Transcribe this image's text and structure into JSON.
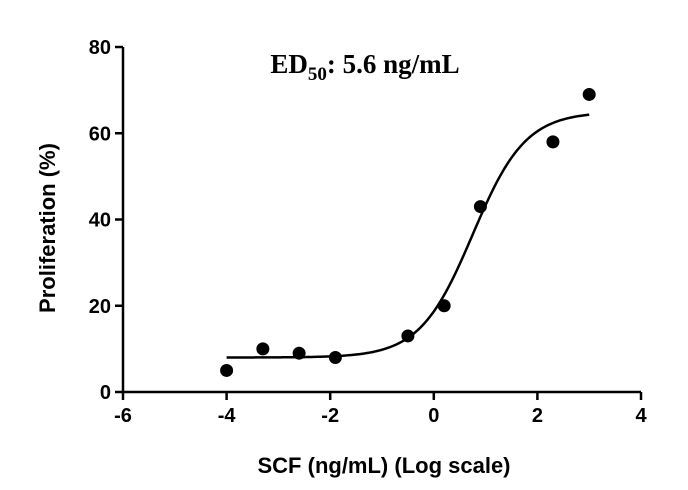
{
  "chart_data": {
    "type": "scatter",
    "title_prefix": "ED",
    "title_subscript": "50",
    "title_suffix": ": 5.6 ng/mL",
    "xlabel": "SCF (ng/mL) (Log scale)",
    "ylabel": "Proliferation (%)",
    "xlim": [
      -6,
      4
    ],
    "ylim": [
      0,
      80
    ],
    "xticks": [
      -6,
      -4,
      -2,
      0,
      2,
      4
    ],
    "yticks": [
      0,
      20,
      40,
      60,
      80
    ],
    "grid": false,
    "series": [
      {
        "points": [
          {
            "x": -4.0,
            "y": 5
          },
          {
            "x": -3.3,
            "y": 10
          },
          {
            "x": -2.6,
            "y": 9
          },
          {
            "x": -1.9,
            "y": 8
          },
          {
            "x": -0.5,
            "y": 13
          },
          {
            "x": 0.2,
            "y": 20
          },
          {
            "x": 0.9,
            "y": 43
          },
          {
            "x": 2.3,
            "y": 58
          },
          {
            "x": 3.0,
            "y": 69
          }
        ],
        "fit": {
          "model": "sigmoidal",
          "bottom": 8,
          "top": 65,
          "log_ec50": 0.75,
          "hill_slope": 0.85,
          "x_range": [
            -4.0,
            3.0
          ]
        }
      }
    ]
  }
}
